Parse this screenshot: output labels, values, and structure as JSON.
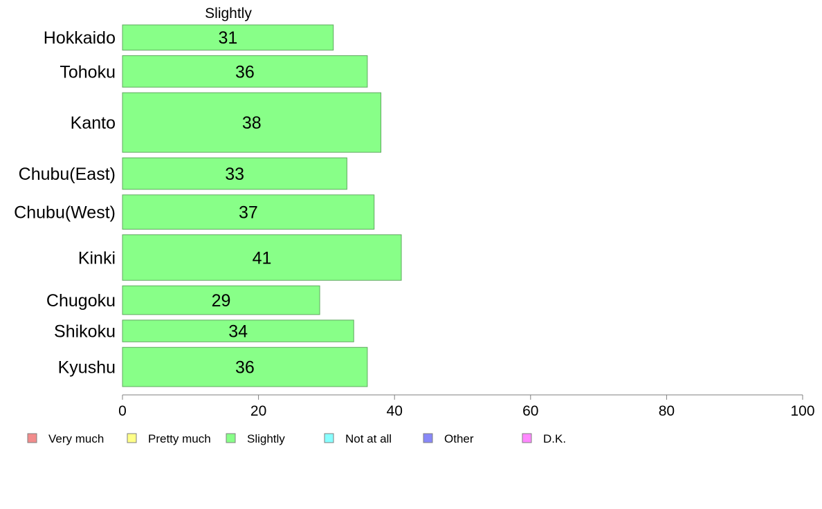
{
  "chart_data": {
    "type": "bar",
    "orientation": "horizontal",
    "title": "Slightly",
    "categories": [
      "Hokkaido",
      "Tohoku",
      "Kanto",
      "Chubu(East)",
      "Chubu(West)",
      "Kinki",
      "Chugoku",
      "Shikoku",
      "Kyushu"
    ],
    "series": [
      {
        "name": "Slightly",
        "values": [
          31,
          36,
          38,
          33,
          37,
          41,
          29,
          34,
          36
        ]
      }
    ],
    "bar_weights": [
      36,
      45,
      85,
      45,
      49,
      65,
      41,
      31,
      56
    ],
    "xlim": [
      0,
      100
    ],
    "xticks": [
      0,
      20,
      40,
      60,
      80,
      100
    ],
    "xlabel": "",
    "ylabel": "",
    "grid": false,
    "legend_position": "bottom",
    "legend": [
      {
        "label": "Very much",
        "color": "#f28c8c"
      },
      {
        "label": "Pretty much",
        "color": "#ffff88"
      },
      {
        "label": "Slightly",
        "color": "#88ff88"
      },
      {
        "label": "Not at all",
        "color": "#88ffff"
      },
      {
        "label": "Other",
        "color": "#8888f8"
      },
      {
        "label": "D.K.",
        "color": "#ff88ff"
      }
    ],
    "bar_color": "#88ff88"
  }
}
